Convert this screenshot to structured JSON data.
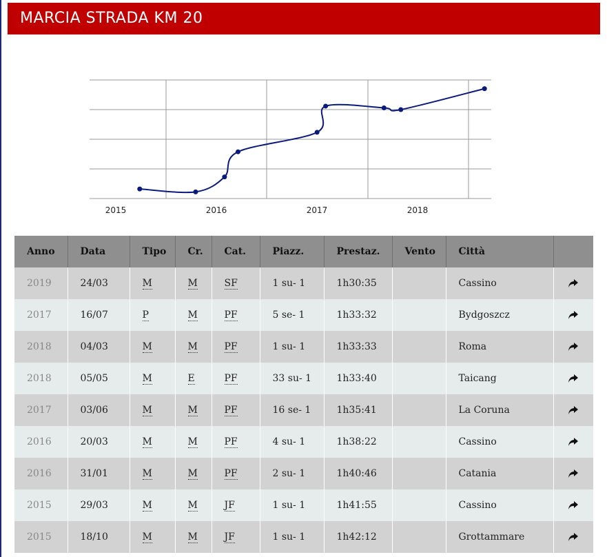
{
  "page": {
    "title": "MARCIA STRADA KM 20"
  },
  "colors": {
    "title_bar": "#c00000",
    "line": "#0a1a7a",
    "grid": "#9a9a9a"
  },
  "chart_data": {
    "type": "line",
    "title": "",
    "xlabel": "",
    "ylabel": "",
    "x_ticks": [
      "2015",
      "2016",
      "2017",
      "2018"
    ],
    "y_axis_labels_shown": false,
    "grid": true,
    "series": [
      {
        "points": [
          {
            "x": "2015-03-29",
            "y": "1h41:55"
          },
          {
            "x": "2015-10-18",
            "y": "1h42:12"
          },
          {
            "x": "2016-01-31",
            "y": "1h40:46"
          },
          {
            "x": "2016-03-20",
            "y": "1h38:22"
          },
          {
            "x": "2017-01-01",
            "y": "1h36:30"
          },
          {
            "x": "2017-02-01",
            "y": "1h34:00"
          },
          {
            "x": "2017-09-01",
            "y": "1h34:10"
          },
          {
            "x": "2017-11-01",
            "y": "1h34:20"
          },
          {
            "x": "2018-09-01",
            "y": "1h32:20"
          }
        ]
      }
    ]
  },
  "table": {
    "headers": [
      "Anno",
      "Data",
      "Tipo",
      "Cr.",
      "Cat.",
      "Piazz.",
      "Prestaz.",
      "Vento",
      "Città",
      ""
    ],
    "rows": [
      {
        "anno": "2019",
        "data": "24/03",
        "tipo": "M",
        "cr": "M",
        "cat": "SF",
        "piazz": "1 su- 1",
        "prestaz": "1h30:35",
        "vento": "",
        "citta": "Cassino"
      },
      {
        "anno": "2017",
        "data": "16/07",
        "tipo": "P",
        "cr": "M",
        "cat": "PF",
        "piazz": "5 se- 1",
        "prestaz": "1h33:32",
        "vento": "",
        "citta": "Bydgoszcz"
      },
      {
        "anno": "2018",
        "data": "04/03",
        "tipo": "M",
        "cr": "M",
        "cat": "PF",
        "piazz": "1 su- 1",
        "prestaz": "1h33:33",
        "vento": "",
        "citta": "Roma"
      },
      {
        "anno": "2018",
        "data": "05/05",
        "tipo": "M",
        "cr": "E",
        "cat": "PF",
        "piazz": "33 su- 1",
        "prestaz": "1h33:40",
        "vento": "",
        "citta": "Taicang"
      },
      {
        "anno": "2017",
        "data": "03/06",
        "tipo": "M",
        "cr": "M",
        "cat": "PF",
        "piazz": "16 se- 1",
        "prestaz": "1h35:41",
        "vento": "",
        "citta": "La Coruna"
      },
      {
        "anno": "2016",
        "data": "20/03",
        "tipo": "M",
        "cr": "M",
        "cat": "PF",
        "piazz": "4 su- 1",
        "prestaz": "1h38:22",
        "vento": "",
        "citta": "Cassino"
      },
      {
        "anno": "2016",
        "data": "31/01",
        "tipo": "M",
        "cr": "M",
        "cat": "PF",
        "piazz": "2 su- 1",
        "prestaz": "1h40:46",
        "vento": "",
        "citta": "Catania"
      },
      {
        "anno": "2015",
        "data": "29/03",
        "tipo": "M",
        "cr": "M",
        "cat": "JF",
        "piazz": "1 su- 1",
        "prestaz": "1h41:55",
        "vento": "",
        "citta": "Cassino"
      },
      {
        "anno": "2015",
        "data": "18/10",
        "tipo": "M",
        "cr": "M",
        "cat": "JF",
        "piazz": "1 su- 1",
        "prestaz": "1h42:12",
        "vento": "",
        "citta": "Grottammare"
      }
    ],
    "row_action_icon": "share-arrow-icon"
  }
}
